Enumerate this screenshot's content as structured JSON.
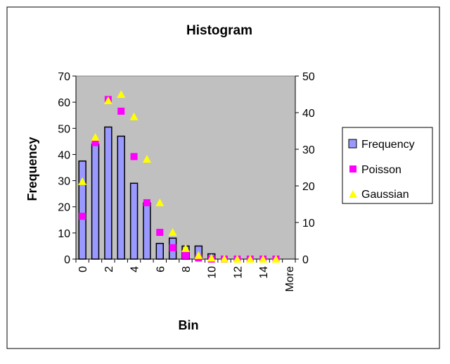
{
  "chart_data": {
    "type": "bar",
    "title": "Histogram",
    "xlabel": "Bin",
    "ylabel": "Frequency",
    "ylim": [
      0,
      70
    ],
    "y2lim": [
      0,
      50
    ],
    "yticks": [
      0,
      10,
      20,
      30,
      40,
      50,
      60,
      70
    ],
    "y2ticks": [
      0,
      10,
      20,
      30,
      40,
      50
    ],
    "categories": [
      "0",
      "1",
      "2",
      "3",
      "4",
      "5",
      "6",
      "7",
      "8",
      "9",
      "10",
      "11",
      "12",
      "13",
      "14",
      "15",
      "More"
    ],
    "xtick_labels": [
      "0",
      "",
      "2",
      "",
      "4",
      "",
      "6",
      "",
      "8",
      "",
      "10",
      "",
      "12",
      "",
      "14",
      "",
      "More"
    ],
    "legend_position": "right",
    "series": [
      {
        "name": "Frequency",
        "kind": "bar",
        "axis": "left",
        "color": "#9999FF",
        "values": [
          37.5,
          44,
          50.5,
          47,
          29,
          21.5,
          6,
          8,
          5,
          5,
          2,
          0,
          0,
          0,
          0,
          0,
          0
        ]
      },
      {
        "name": "Poisson",
        "kind": "square",
        "axis": "right",
        "color": "#FF00FF",
        "values": [
          11.7,
          31.8,
          43.6,
          40.4,
          28,
          15.4,
          7.3,
          3.1,
          1,
          0.3,
          0,
          0,
          0,
          0,
          0,
          0,
          null
        ]
      },
      {
        "name": "Gaussian",
        "kind": "triangle",
        "axis": "right",
        "color": "#FFFF00",
        "values": [
          21.2,
          33.3,
          43.3,
          45,
          38.9,
          27.3,
          15.4,
          7.3,
          2.9,
          1,
          0.3,
          0.05,
          0,
          0,
          0,
          0,
          null
        ]
      }
    ],
    "plot_background": "#C0C0C0"
  }
}
